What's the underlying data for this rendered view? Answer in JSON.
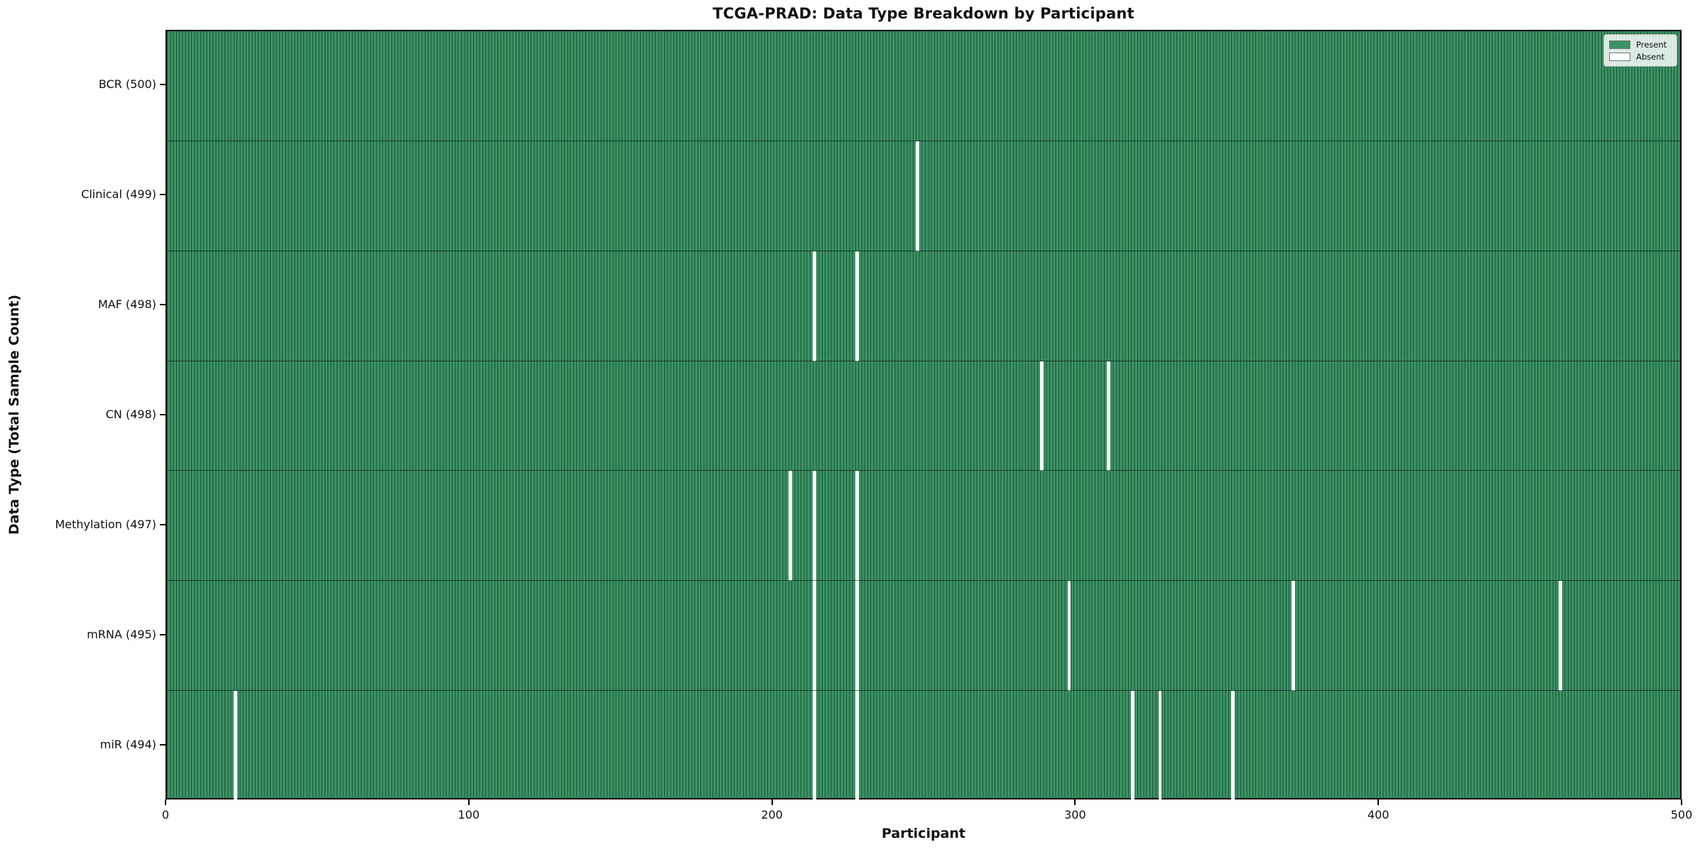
{
  "figure": {
    "title": "TCGA-PRAD: Data Type Breakdown by Participant",
    "x_axis_label": "Participant",
    "y_axis_label": "Data Type (Total Sample Count)"
  },
  "legend": {
    "items": [
      {
        "label": "Present",
        "color": "#3a9364"
      },
      {
        "label": "Absent",
        "color": "#ffffff"
      }
    ]
  },
  "chart_data": {
    "type": "heatmap",
    "title": "TCGA-PRAD: Data Type Breakdown by Participant",
    "xlabel": "Participant",
    "ylabel": "Data Type (Total Sample Count)",
    "x_range": [
      0,
      500
    ],
    "x_ticks": [
      0,
      100,
      200,
      300,
      400,
      500
    ],
    "n_participants": 500,
    "grid": false,
    "legend_position": "upper right",
    "present_color": "#3a9364",
    "cell_edge_color": "#1e5137",
    "absent_color": "#ffffff",
    "rows": [
      {
        "label": "BCR (500)",
        "data_type": "BCR",
        "total_samples": 500,
        "absent_participants": []
      },
      {
        "label": "Clinical (499)",
        "data_type": "Clinical",
        "total_samples": 499,
        "absent_participants": [
          247
        ]
      },
      {
        "label": "MAF (498)",
        "data_type": "MAF",
        "total_samples": 498,
        "absent_participants": [
          213,
          227
        ]
      },
      {
        "label": "CN (498)",
        "data_type": "CN",
        "total_samples": 498,
        "absent_participants": [
          288,
          310
        ]
      },
      {
        "label": "Methylation (497)",
        "data_type": "Methylation",
        "total_samples": 497,
        "absent_participants": [
          205,
          213,
          227
        ]
      },
      {
        "label": "mRNA (495)",
        "data_type": "mRNA",
        "total_samples": 495,
        "absent_participants": [
          213,
          227,
          297,
          371,
          459
        ]
      },
      {
        "label": "miR (494)",
        "data_type": "miR",
        "total_samples": 494,
        "absent_participants": [
          22,
          213,
          227,
          318,
          327,
          351
        ]
      }
    ]
  }
}
